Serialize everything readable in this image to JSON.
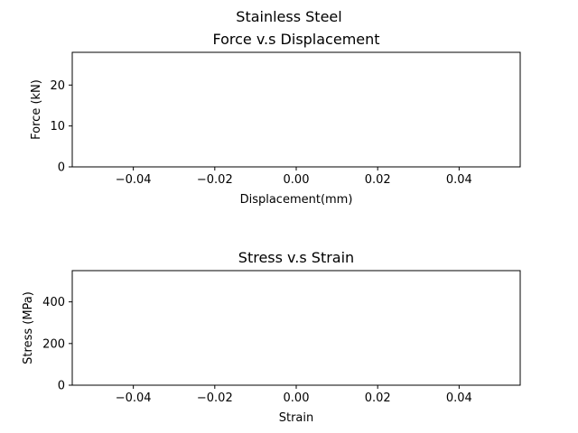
{
  "figure": {
    "suptitle": "Stainless Steel"
  },
  "chart_data": [
    {
      "type": "line",
      "title": "Force v.s Displacement",
      "xlabel": "Displacement(mm)",
      "ylabel": "Force (kN)",
      "xlim": [
        -0.055,
        0.055
      ],
      "ylim": [
        0,
        28
      ],
      "xticks": [
        -0.04,
        -0.02,
        0.0,
        0.02,
        0.04
      ],
      "xtick_labels": [
        "−0.04",
        "−0.02",
        "0.00",
        "0.02",
        "0.04"
      ],
      "yticks": [
        0,
        10,
        20
      ],
      "ytick_labels": [
        "0",
        "10",
        "20"
      ],
      "series": [],
      "grid": false
    },
    {
      "type": "line",
      "title": "Stress v.s Strain",
      "xlabel": "Strain",
      "ylabel": "Stress (MPa)",
      "xlim": [
        -0.055,
        0.055
      ],
      "ylim": [
        0,
        550
      ],
      "xticks": [
        -0.04,
        -0.02,
        0.0,
        0.02,
        0.04
      ],
      "xtick_labels": [
        "−0.04",
        "−0.02",
        "0.00",
        "0.02",
        "0.04"
      ],
      "yticks": [
        0,
        200,
        400
      ],
      "ytick_labels": [
        "0",
        "200",
        "400"
      ],
      "series": [],
      "grid": false
    }
  ]
}
